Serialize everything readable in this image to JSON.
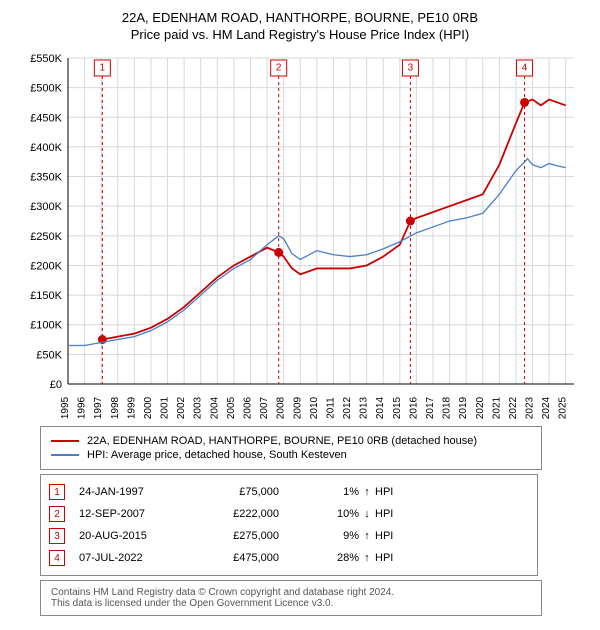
{
  "title": {
    "line1": "22A, EDENHAM ROAD, HANTHORPE, BOURNE, PE10 0RB",
    "line2": "Price paid vs. HM Land Registry's House Price Index (HPI)"
  },
  "chart": {
    "type": "line",
    "background_color": "#ffffff",
    "grid_color": "#d8d8d8",
    "xlim": [
      1995,
      2025.5
    ],
    "ylim": [
      0,
      550
    ],
    "ytick_step": 50,
    "yticks": [
      "£0",
      "£50K",
      "£100K",
      "£150K",
      "£200K",
      "£250K",
      "£300K",
      "£350K",
      "£400K",
      "£450K",
      "£500K",
      "£550K"
    ],
    "xticks": [
      1995,
      1996,
      1997,
      1998,
      1999,
      2000,
      2001,
      2002,
      2003,
      2004,
      2005,
      2006,
      2007,
      2008,
      2009,
      2010,
      2011,
      2012,
      2013,
      2014,
      2015,
      2016,
      2017,
      2018,
      2019,
      2020,
      2021,
      2022,
      2023,
      2024,
      2025
    ],
    "label_fontsize": 11,
    "series": [
      {
        "name": "property",
        "color": "#cc0000",
        "width": 1.8,
        "points": [
          [
            1997.07,
            75
          ],
          [
            1998,
            80
          ],
          [
            1999,
            85
          ],
          [
            2000,
            95
          ],
          [
            2001,
            110
          ],
          [
            2002,
            130
          ],
          [
            2003,
            155
          ],
          [
            2004,
            180
          ],
          [
            2005,
            200
          ],
          [
            2006,
            215
          ],
          [
            2007,
            230
          ],
          [
            2007.7,
            222
          ],
          [
            2008,
            215
          ],
          [
            2008.5,
            195
          ],
          [
            2009,
            185
          ],
          [
            2010,
            195
          ],
          [
            2011,
            195
          ],
          [
            2012,
            195
          ],
          [
            2013,
            200
          ],
          [
            2014,
            215
          ],
          [
            2015,
            235
          ],
          [
            2015.64,
            275
          ],
          [
            2016,
            280
          ],
          [
            2017,
            290
          ],
          [
            2018,
            300
          ],
          [
            2019,
            310
          ],
          [
            2020,
            320
          ],
          [
            2021,
            370
          ],
          [
            2022,
            440
          ],
          [
            2022.52,
            475
          ],
          [
            2023,
            480
          ],
          [
            2023.5,
            470
          ],
          [
            2024,
            480
          ],
          [
            2024.5,
            475
          ],
          [
            2025,
            470
          ]
        ]
      },
      {
        "name": "hpi",
        "color": "#4a7ec8",
        "width": 1.3,
        "points": [
          [
            1995,
            65
          ],
          [
            1996,
            65
          ],
          [
            1997,
            70
          ],
          [
            1998,
            75
          ],
          [
            1999,
            80
          ],
          [
            2000,
            90
          ],
          [
            2001,
            105
          ],
          [
            2002,
            125
          ],
          [
            2003,
            150
          ],
          [
            2004,
            175
          ],
          [
            2005,
            195
          ],
          [
            2006,
            210
          ],
          [
            2007,
            235
          ],
          [
            2007.7,
            250
          ],
          [
            2008,
            245
          ],
          [
            2008.5,
            220
          ],
          [
            2009,
            210
          ],
          [
            2010,
            225
          ],
          [
            2011,
            218
          ],
          [
            2012,
            215
          ],
          [
            2013,
            218
          ],
          [
            2014,
            228
          ],
          [
            2015,
            240
          ],
          [
            2016,
            255
          ],
          [
            2017,
            265
          ],
          [
            2018,
            275
          ],
          [
            2019,
            280
          ],
          [
            2020,
            288
          ],
          [
            2021,
            320
          ],
          [
            2022,
            360
          ],
          [
            2022.7,
            380
          ],
          [
            2023,
            370
          ],
          [
            2023.5,
            365
          ],
          [
            2024,
            372
          ],
          [
            2024.5,
            368
          ],
          [
            2025,
            365
          ]
        ]
      }
    ],
    "events": [
      {
        "n": "1",
        "year": 1997.07,
        "price": 75
      },
      {
        "n": "2",
        "year": 2007.7,
        "price": 222
      },
      {
        "n": "3",
        "year": 2015.64,
        "price": 275
      },
      {
        "n": "4",
        "year": 2022.52,
        "price": 475
      }
    ]
  },
  "legend": {
    "items": [
      {
        "color": "#cc0000",
        "label": "22A, EDENHAM ROAD, HANTHORPE, BOURNE, PE10 0RB (detached house)"
      },
      {
        "color": "#4a7ec8",
        "label": "HPI: Average price, detached house, South Kesteven"
      }
    ]
  },
  "events_table": [
    {
      "n": "1",
      "date": "24-JAN-1997",
      "price": "£75,000",
      "pct": "1%",
      "arrow": "↑",
      "suffix": "HPI"
    },
    {
      "n": "2",
      "date": "12-SEP-2007",
      "price": "£222,000",
      "pct": "10%",
      "arrow": "↓",
      "suffix": "HPI"
    },
    {
      "n": "3",
      "date": "20-AUG-2015",
      "price": "£275,000",
      "pct": "9%",
      "arrow": "↑",
      "suffix": "HPI"
    },
    {
      "n": "4",
      "date": "07-JUL-2022",
      "price": "£475,000",
      "pct": "28%",
      "arrow": "↑",
      "suffix": "HPI"
    }
  ],
  "footer": {
    "line1": "Contains HM Land Registry data © Crown copyright and database right 2024.",
    "line2": "This data is licensed under the Open Government Licence v3.0."
  }
}
